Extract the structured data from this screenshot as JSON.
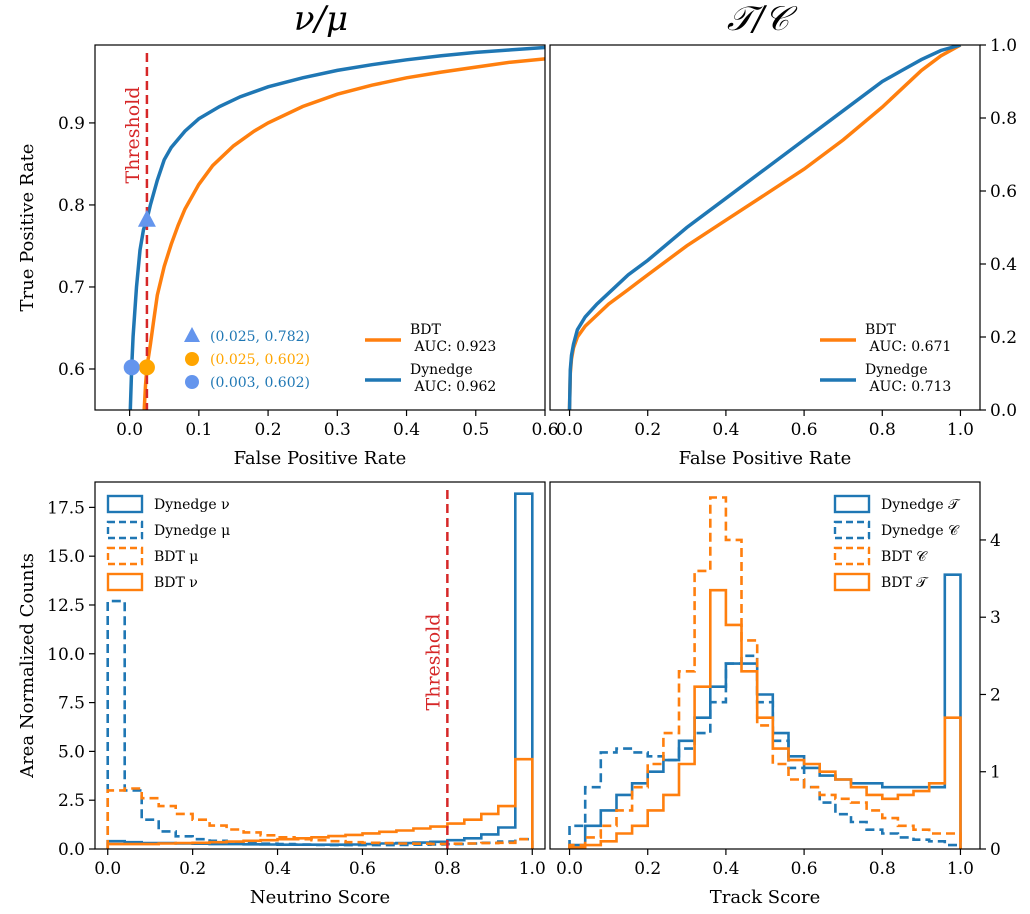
{
  "colors": {
    "dynedge": "#1f77b4",
    "bdt": "#ff7f0e",
    "threshold": "#d62728",
    "marker_blue": "#6495ed",
    "marker_orange": "#ffa500"
  },
  "titles": {
    "left": "ν/μ",
    "right": "𝒯/𝒞"
  },
  "chart_data": [
    {
      "id": "roc_nu_mu",
      "type": "line",
      "xlabel": "False Positive Rate",
      "ylabel": "True Positive Rate",
      "xlim": [
        -0.05,
        0.6
      ],
      "ylim": [
        0.55,
        0.995
      ],
      "xticks": [
        "0.0",
        "0.1",
        "0.2",
        "0.3",
        "0.4",
        "0.5",
        "0.6"
      ],
      "yticks": [
        "0.6",
        "0.7",
        "0.8",
        "0.9"
      ],
      "threshold": {
        "label": "Threshold",
        "x": 0.025
      },
      "series": [
        {
          "name": "BDT\n AUC: 0.923",
          "key": "bdt",
          "x": [
            0.021,
            0.023,
            0.025,
            0.03,
            0.035,
            0.04,
            0.05,
            0.06,
            0.07,
            0.08,
            0.1,
            0.12,
            0.15,
            0.18,
            0.2,
            0.25,
            0.3,
            0.35,
            0.4,
            0.45,
            0.5,
            0.55,
            0.6
          ],
          "y": [
            0.55,
            0.58,
            0.602,
            0.63,
            0.66,
            0.69,
            0.725,
            0.752,
            0.775,
            0.795,
            0.825,
            0.848,
            0.872,
            0.89,
            0.9,
            0.92,
            0.935,
            0.946,
            0.955,
            0.962,
            0.968,
            0.974,
            0.978
          ]
        },
        {
          "name": "Dynedge\n AUC: 0.962",
          "key": "dynedge",
          "x": [
            0.001,
            0.003,
            0.005,
            0.01,
            0.015,
            0.02,
            0.025,
            0.03,
            0.04,
            0.05,
            0.06,
            0.08,
            0.1,
            0.13,
            0.16,
            0.2,
            0.25,
            0.3,
            0.35,
            0.4,
            0.45,
            0.5,
            0.55,
            0.6
          ],
          "y": [
            0.55,
            0.602,
            0.64,
            0.7,
            0.745,
            0.77,
            0.782,
            0.8,
            0.83,
            0.855,
            0.87,
            0.89,
            0.905,
            0.92,
            0.932,
            0.944,
            0.955,
            0.964,
            0.971,
            0.977,
            0.982,
            0.986,
            0.989,
            0.992
          ]
        }
      ],
      "markers": [
        {
          "label": "(0.025, 0.782)",
          "x": 0.025,
          "y": 0.782,
          "shape": "triangle",
          "color": "#6495ed",
          "text_color": "#1f77b4"
        },
        {
          "label": "(0.025, 0.602)",
          "x": 0.025,
          "y": 0.602,
          "shape": "circle",
          "color": "#ffa500",
          "text_color": "#ffa500"
        },
        {
          "label": "(0.003, 0.602)",
          "x": 0.003,
          "y": 0.602,
          "shape": "circle",
          "color": "#6495ed",
          "text_color": "#1f77b4"
        }
      ]
    },
    {
      "id": "roc_track_cascade",
      "type": "line",
      "xlabel": "False Positive Rate",
      "ylabel": "",
      "xlim": [
        -0.05,
        1.05
      ],
      "ylim": [
        0,
        1.0
      ],
      "xticks": [
        "0.0",
        "0.2",
        "0.4",
        "0.6",
        "0.8",
        "1.0"
      ],
      "yticks": [
        "0.0",
        "0.2",
        "0.4",
        "0.6",
        "0.8",
        "1.0"
      ],
      "series": [
        {
          "name": "BDT\n AUC: 0.671",
          "key": "bdt",
          "x": [
            0,
            0.002,
            0.005,
            0.01,
            0.02,
            0.04,
            0.07,
            0.1,
            0.15,
            0.2,
            0.3,
            0.4,
            0.5,
            0.6,
            0.7,
            0.8,
            0.85,
            0.9,
            0.95,
            1.0
          ],
          "y": [
            0,
            0.1,
            0.14,
            0.17,
            0.2,
            0.23,
            0.26,
            0.29,
            0.33,
            0.37,
            0.45,
            0.52,
            0.59,
            0.66,
            0.74,
            0.83,
            0.88,
            0.93,
            0.97,
            1.0
          ]
        },
        {
          "name": "Dynedge\n AUC: 0.713",
          "key": "dynedge",
          "x": [
            0,
            0.002,
            0.005,
            0.01,
            0.02,
            0.04,
            0.07,
            0.1,
            0.15,
            0.2,
            0.3,
            0.4,
            0.5,
            0.6,
            0.7,
            0.8,
            0.85,
            0.9,
            0.95,
            1.0
          ],
          "y": [
            0,
            0.11,
            0.15,
            0.18,
            0.22,
            0.255,
            0.29,
            0.32,
            0.37,
            0.41,
            0.5,
            0.58,
            0.66,
            0.74,
            0.82,
            0.9,
            0.93,
            0.96,
            0.985,
            1.0
          ]
        }
      ]
    },
    {
      "id": "hist_neutrino",
      "type": "histogram",
      "xlabel": "Neutrino Score",
      "ylabel": "Area Normalized Counts",
      "xlim": [
        -0.03,
        1.03
      ],
      "ylim": [
        0,
        18.8
      ],
      "xticks": [
        "0.0",
        "0.2",
        "0.4",
        "0.6",
        "0.8",
        "1.0"
      ],
      "yticks": [
        "0.0",
        "2.5",
        "5.0",
        "7.5",
        "10.0",
        "12.5",
        "15.0",
        "17.5"
      ],
      "threshold": {
        "label": "Threshold",
        "x": 0.8
      },
      "bin_edges": [
        0,
        0.04,
        0.08,
        0.12,
        0.16,
        0.2,
        0.24,
        0.28,
        0.32,
        0.36,
        0.4,
        0.44,
        0.48,
        0.52,
        0.56,
        0.6,
        0.64,
        0.68,
        0.72,
        0.76,
        0.8,
        0.84,
        0.88,
        0.92,
        0.96,
        1.0
      ],
      "series": [
        {
          "name": "Dynedge ν",
          "key": "dynedge",
          "dashed": false,
          "values": [
            0.4,
            0.35,
            0.3,
            0.3,
            0.28,
            0.27,
            0.25,
            0.25,
            0.24,
            0.23,
            0.22,
            0.22,
            0.22,
            0.22,
            0.23,
            0.25,
            0.28,
            0.3,
            0.33,
            0.37,
            0.45,
            0.55,
            0.75,
            1.1,
            18.2
          ]
        },
        {
          "name": "Dynedge  μ",
          "key": "dynedge",
          "dashed": true,
          "values": [
            12.7,
            3.0,
            1.5,
            0.9,
            0.65,
            0.5,
            0.42,
            0.35,
            0.3,
            0.27,
            0.25,
            0.23,
            0.21,
            0.2,
            0.2,
            0.2,
            0.2,
            0.21,
            0.22,
            0.23,
            0.25,
            0.28,
            0.32,
            0.38,
            0.5
          ]
        },
        {
          "name": "BDT  μ",
          "key": "bdt",
          "dashed": true,
          "values": [
            3.0,
            3.1,
            2.6,
            2.2,
            1.8,
            1.5,
            1.2,
            1.0,
            0.85,
            0.7,
            0.6,
            0.5,
            0.45,
            0.4,
            0.35,
            0.32,
            0.3,
            0.28,
            0.27,
            0.26,
            0.27,
            0.28,
            0.3,
            0.32,
            0.5
          ]
        },
        {
          "name": "BDT  ν",
          "key": "bdt",
          "dashed": false,
          "values": [
            0.25,
            0.25,
            0.25,
            0.28,
            0.3,
            0.32,
            0.35,
            0.38,
            0.42,
            0.45,
            0.5,
            0.55,
            0.6,
            0.66,
            0.72,
            0.8,
            0.88,
            0.95,
            1.05,
            1.15,
            1.3,
            1.5,
            1.8,
            2.2,
            4.6
          ]
        }
      ]
    },
    {
      "id": "hist_track",
      "type": "histogram",
      "xlabel": "Track Score",
      "ylabel": "",
      "xlim": [
        -0.05,
        1.05
      ],
      "ylim": [
        0,
        4.75
      ],
      "xticks": [
        "0.0",
        "0.2",
        "0.4",
        "0.6",
        "0.8",
        "1.0"
      ],
      "yticks": [
        "0",
        "1",
        "2",
        "3",
        "4"
      ],
      "bin_edges": [
        0,
        0.04,
        0.08,
        0.12,
        0.16,
        0.2,
        0.24,
        0.28,
        0.32,
        0.36,
        0.4,
        0.44,
        0.48,
        0.52,
        0.56,
        0.6,
        0.64,
        0.68,
        0.72,
        0.76,
        0.8,
        0.84,
        0.88,
        0.92,
        0.96,
        1.0
      ],
      "series": [
        {
          "name": "Dynedge 𝒯",
          "key": "dynedge",
          "dashed": false,
          "values": [
            0.05,
            0.3,
            0.5,
            0.7,
            0.85,
            1.0,
            1.15,
            1.4,
            1.7,
            2.1,
            2.4,
            2.4,
            2.0,
            1.5,
            1.2,
            1.05,
            0.95,
            0.9,
            0.85,
            0.85,
            0.8,
            0.8,
            0.8,
            0.8,
            3.55
          ]
        },
        {
          "name": "Dynedge 𝒞",
          "key": "dynedge",
          "dashed": true,
          "values": [
            0.3,
            0.8,
            1.25,
            1.3,
            1.25,
            1.2,
            1.15,
            1.3,
            1.5,
            1.9,
            2.4,
            2.5,
            1.9,
            1.4,
            1.05,
            0.8,
            0.6,
            0.45,
            0.35,
            0.25,
            0.2,
            0.15,
            0.12,
            0.1,
            0.05
          ]
        },
        {
          "name": "BDT 𝒞",
          "key": "bdt",
          "dashed": true,
          "values": [
            0.05,
            0.15,
            0.3,
            0.5,
            0.8,
            1.1,
            1.5,
            2.3,
            3.6,
            4.55,
            4.0,
            2.7,
            1.6,
            1.1,
            0.9,
            0.8,
            0.7,
            0.65,
            0.6,
            0.5,
            0.4,
            0.3,
            0.25,
            0.2,
            0.2
          ]
        },
        {
          "name": "BDT 𝒯",
          "key": "bdt",
          "dashed": false,
          "values": [
            0.02,
            0.05,
            0.1,
            0.2,
            0.3,
            0.5,
            0.7,
            1.1,
            2.1,
            3.35,
            2.9,
            2.3,
            1.7,
            1.3,
            1.15,
            1.1,
            1.0,
            0.9,
            0.8,
            0.7,
            0.65,
            0.7,
            0.75,
            0.85,
            1.7
          ]
        }
      ]
    }
  ]
}
